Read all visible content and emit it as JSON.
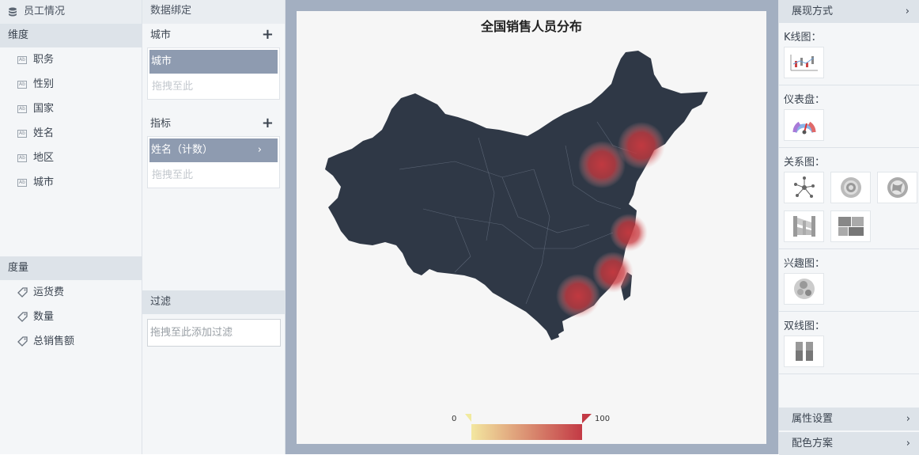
{
  "left": {
    "title": "员工情况",
    "dimensions_label": "维度",
    "dimensions": [
      "职务",
      "性别",
      "国家",
      "姓名",
      "地区",
      "城市"
    ],
    "measures_label": "度量",
    "measures": [
      "运货费",
      "数量",
      "总销售额"
    ]
  },
  "bind": {
    "title": "数据绑定",
    "city_label": "城市",
    "city_chip": "城市",
    "drop_hint": "拖拽至此",
    "metric_label": "指标",
    "metric_chip": "姓名（计数）",
    "filter_label": "过滤",
    "filter_hint": "拖拽至此添加过滤"
  },
  "chart": {
    "title": "全国销售人员分布",
    "legend_min": "0",
    "legend_max": "100",
    "colors": {
      "background": "#f6f6f6",
      "map": "#2f3846",
      "heat": "#c9393f",
      "legend_low": "#f3e7a0",
      "legend_high": "#c33a45"
    }
  },
  "right": {
    "display_mode": "展现方式",
    "kline": "K线图：",
    "gauge": "仪表盘：",
    "relation": "关系图：",
    "interest": "兴趣图：",
    "dual": "双线图：",
    "properties": "属性设置",
    "palette": "配色方案"
  }
}
